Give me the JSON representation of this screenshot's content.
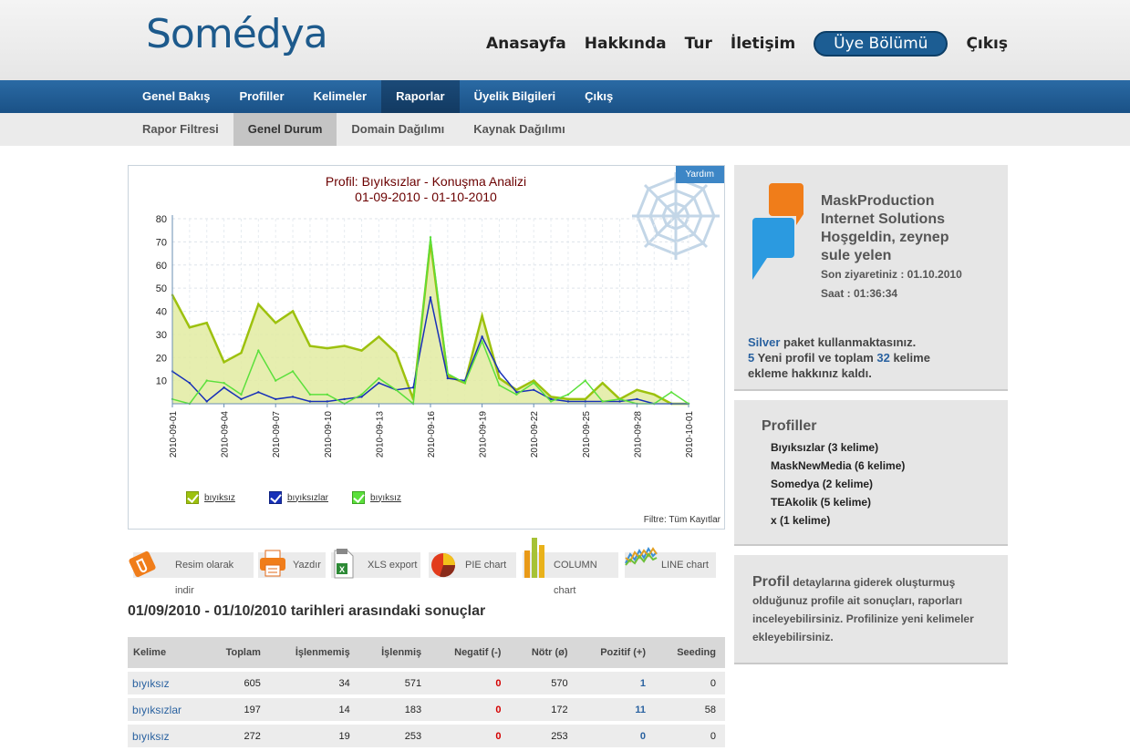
{
  "brand": {
    "logo_text": "Somédya"
  },
  "top_nav": {
    "items": [
      "Anasayfa",
      "Hakkında",
      "Tur",
      "İletişim"
    ],
    "member_button": "Üye Bölümü",
    "logout": "Çıkış"
  },
  "main_nav": {
    "items": [
      {
        "label": "Genel Bakış",
        "active": false
      },
      {
        "label": "Profiller",
        "active": false
      },
      {
        "label": "Kelimeler",
        "active": false
      },
      {
        "label": "Raporlar",
        "active": true
      },
      {
        "label": "Üyelik Bilgileri",
        "active": false
      },
      {
        "label": "Çıkış",
        "active": false
      }
    ]
  },
  "sub_nav": {
    "items": [
      {
        "label": "Rapor Filtresi",
        "active": false
      },
      {
        "label": "Genel Durum",
        "active": true
      },
      {
        "label": "Domain Dağılımı",
        "active": false
      },
      {
        "label": "Kaynak Dağılımı",
        "active": false
      }
    ]
  },
  "chart_panel": {
    "help_button": "Yardım",
    "filter_text": "Filtre: Tüm Kayıtlar"
  },
  "chart_data": {
    "type": "area",
    "title": "Profil: Bıyıksızlar - Konuşma Analizi",
    "subtitle": "01-09-2010 - 01-10-2010",
    "xlabel": "",
    "ylabel": "",
    "ylim": [
      0,
      80
    ],
    "yticks": [
      10,
      20,
      30,
      40,
      50,
      60,
      70,
      80
    ],
    "x_tick_labels": [
      "2010-09-01",
      "2010-09-04",
      "2010-09-07",
      "2010-09-10",
      "2010-09-13",
      "2010-09-16",
      "2010-09-19",
      "2010-09-22",
      "2010-09-25",
      "2010-09-28",
      "2010-10-01"
    ],
    "x": [
      "2010-09-01",
      "2010-09-02",
      "2010-09-03",
      "2010-09-04",
      "2010-09-05",
      "2010-09-06",
      "2010-09-07",
      "2010-09-08",
      "2010-09-09",
      "2010-09-10",
      "2010-09-11",
      "2010-09-12",
      "2010-09-13",
      "2010-09-14",
      "2010-09-15",
      "2010-09-16",
      "2010-09-17",
      "2010-09-18",
      "2010-09-19",
      "2010-09-20",
      "2010-09-21",
      "2010-09-22",
      "2010-09-23",
      "2010-09-24",
      "2010-09-25",
      "2010-09-26",
      "2010-09-27",
      "2010-09-28",
      "2010-09-29",
      "2010-09-30",
      "2010-10-01"
    ],
    "grid": true,
    "legend_position": "bottom",
    "series": [
      {
        "name": "bıyıksız",
        "color": "#9dc10e",
        "fill": "#e2eba1",
        "values": [
          47,
          33,
          35,
          18,
          22,
          43,
          35,
          40,
          25,
          24,
          25,
          23,
          29,
          22,
          2,
          70,
          12,
          9,
          38,
          11,
          6,
          10,
          3,
          2,
          2,
          9,
          2,
          6,
          4,
          0,
          0
        ]
      },
      {
        "name": "bıyıksızlar",
        "color": "#1730b8",
        "fill": "none",
        "values": [
          14,
          9,
          1,
          7,
          2,
          5,
          2,
          3,
          1,
          1,
          2,
          3,
          9,
          6,
          7,
          46,
          11,
          10,
          29,
          14,
          5,
          6,
          2,
          1,
          1,
          1,
          1,
          2,
          0,
          0,
          0
        ]
      },
      {
        "name": "bıyıksız",
        "color": "#5be03c",
        "fill": "none",
        "values": [
          2,
          0,
          10,
          9,
          4,
          23,
          10,
          14,
          4,
          4,
          0,
          4,
          11,
          6,
          0,
          72,
          13,
          9,
          27,
          8,
          4,
          9,
          1,
          4,
          10,
          1,
          2,
          0,
          0,
          5,
          0
        ]
      }
    ]
  },
  "export_bar": {
    "download_image": "Resim olarak indir",
    "print": "Yazdır",
    "xls": "XLS export",
    "pie": "PIE chart",
    "column": "COLUMN chart",
    "line": "LINE chart"
  },
  "results": {
    "title": "01/09/2010 - 01/10/2010 tarihleri arasındaki sonuçlar",
    "headers": [
      "Kelime",
      "Toplam",
      "İşlenmemiş",
      "İşlenmiş",
      "Negatif (-)",
      "Nötr (ø)",
      "Pozitif (+)",
      "Seeding"
    ],
    "rows": [
      [
        "bıyıksız",
        "605",
        "34",
        "571",
        "0",
        "570",
        "1",
        "0"
      ],
      [
        "bıyıksızlar",
        "197",
        "14",
        "183",
        "0",
        "172",
        "11",
        "58"
      ],
      [
        "bıyıksız",
        "272",
        "19",
        "253",
        "0",
        "253",
        "0",
        "0"
      ]
    ]
  },
  "user_panel": {
    "company_line1": "MaskProduction",
    "company_line2": "Internet Solutions",
    "welcome_line1": "Hoşgeldin, zeynep",
    "welcome_line2": "sule yelen",
    "last_visit": "Son ziyaretiniz : 01.10.2010",
    "time": "Saat : 01:36:34",
    "package_name": "Silver",
    "package_text": " paket kullanmaktasınız.",
    "new_profiles": "5",
    "profiles_text": " Yeni profil ve toplam ",
    "keywords": "32",
    "keywords_text": " kelime",
    "rights_text": "ekleme hakkınız kaldı."
  },
  "profiles_panel": {
    "title": "Profiller",
    "items": [
      "Bıyıksızlar (3 kelime)",
      "MaskNewMedia (6 kelime)",
      "Somedya (2 kelime)",
      "TEAkolik (5 kelime)",
      "x (1 kelime)"
    ]
  },
  "info_panel": {
    "lead": "Profil",
    "text": " detaylarına giderek oluşturmuş olduğunuz profile ait sonuçları, raporları inceleyebilirsiniz. Profilinize yeni kelimeler ekleyebilirsiniz."
  }
}
